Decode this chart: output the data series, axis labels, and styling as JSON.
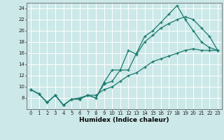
{
  "xlabel": "Humidex (Indice chaleur)",
  "bg_color": "#cce8e8",
  "grid_color": "#ffffff",
  "line_color": "#1a7a6e",
  "xlim": [
    -0.5,
    23.5
  ],
  "ylim": [
    6,
    25
  ],
  "yticks": [
    8,
    10,
    12,
    14,
    16,
    18,
    20,
    22,
    24
  ],
  "xticks": [
    0,
    1,
    2,
    3,
    4,
    5,
    6,
    7,
    8,
    9,
    10,
    11,
    12,
    13,
    14,
    15,
    16,
    17,
    18,
    19,
    20,
    21,
    22,
    23
  ],
  "line1_x": [
    0,
    1,
    2,
    3,
    4,
    5,
    6,
    7,
    8,
    9,
    10,
    11,
    12,
    13,
    14,
    15,
    16,
    17,
    18,
    19,
    20,
    21,
    22,
    23
  ],
  "line1_y": [
    9.5,
    8.7,
    7.2,
    8.5,
    6.7,
    7.8,
    7.8,
    8.5,
    8.0,
    10.5,
    11.0,
    13.0,
    13.0,
    16.0,
    19.0,
    20.0,
    21.5,
    23.0,
    24.5,
    22.0,
    20.0,
    18.0,
    17.0,
    16.5
  ],
  "line2_x": [
    0,
    1,
    2,
    3,
    4,
    5,
    6,
    7,
    8,
    9,
    10,
    11,
    12,
    13,
    14,
    15,
    16,
    17,
    18,
    19,
    20,
    21,
    22,
    23
  ],
  "line2_y": [
    9.5,
    8.7,
    7.2,
    8.5,
    6.7,
    7.8,
    7.8,
    8.5,
    8.0,
    10.8,
    13.0,
    13.0,
    16.5,
    15.8,
    18.0,
    19.2,
    20.5,
    21.3,
    22.0,
    22.5,
    22.0,
    20.5,
    19.0,
    16.5
  ],
  "line3_x": [
    0,
    1,
    2,
    3,
    4,
    5,
    6,
    7,
    8,
    9,
    10,
    11,
    12,
    13,
    14,
    15,
    16,
    17,
    18,
    19,
    20,
    21,
    22,
    23
  ],
  "line3_y": [
    9.5,
    8.7,
    7.2,
    8.5,
    6.7,
    7.8,
    8.0,
    8.5,
    8.5,
    9.5,
    10.0,
    11.0,
    12.0,
    12.5,
    13.5,
    14.5,
    15.0,
    15.5,
    16.0,
    16.5,
    16.8,
    16.5,
    16.5,
    16.5
  ],
  "xlabel_fontsize": 6.5,
  "tick_fontsize": 5.0
}
